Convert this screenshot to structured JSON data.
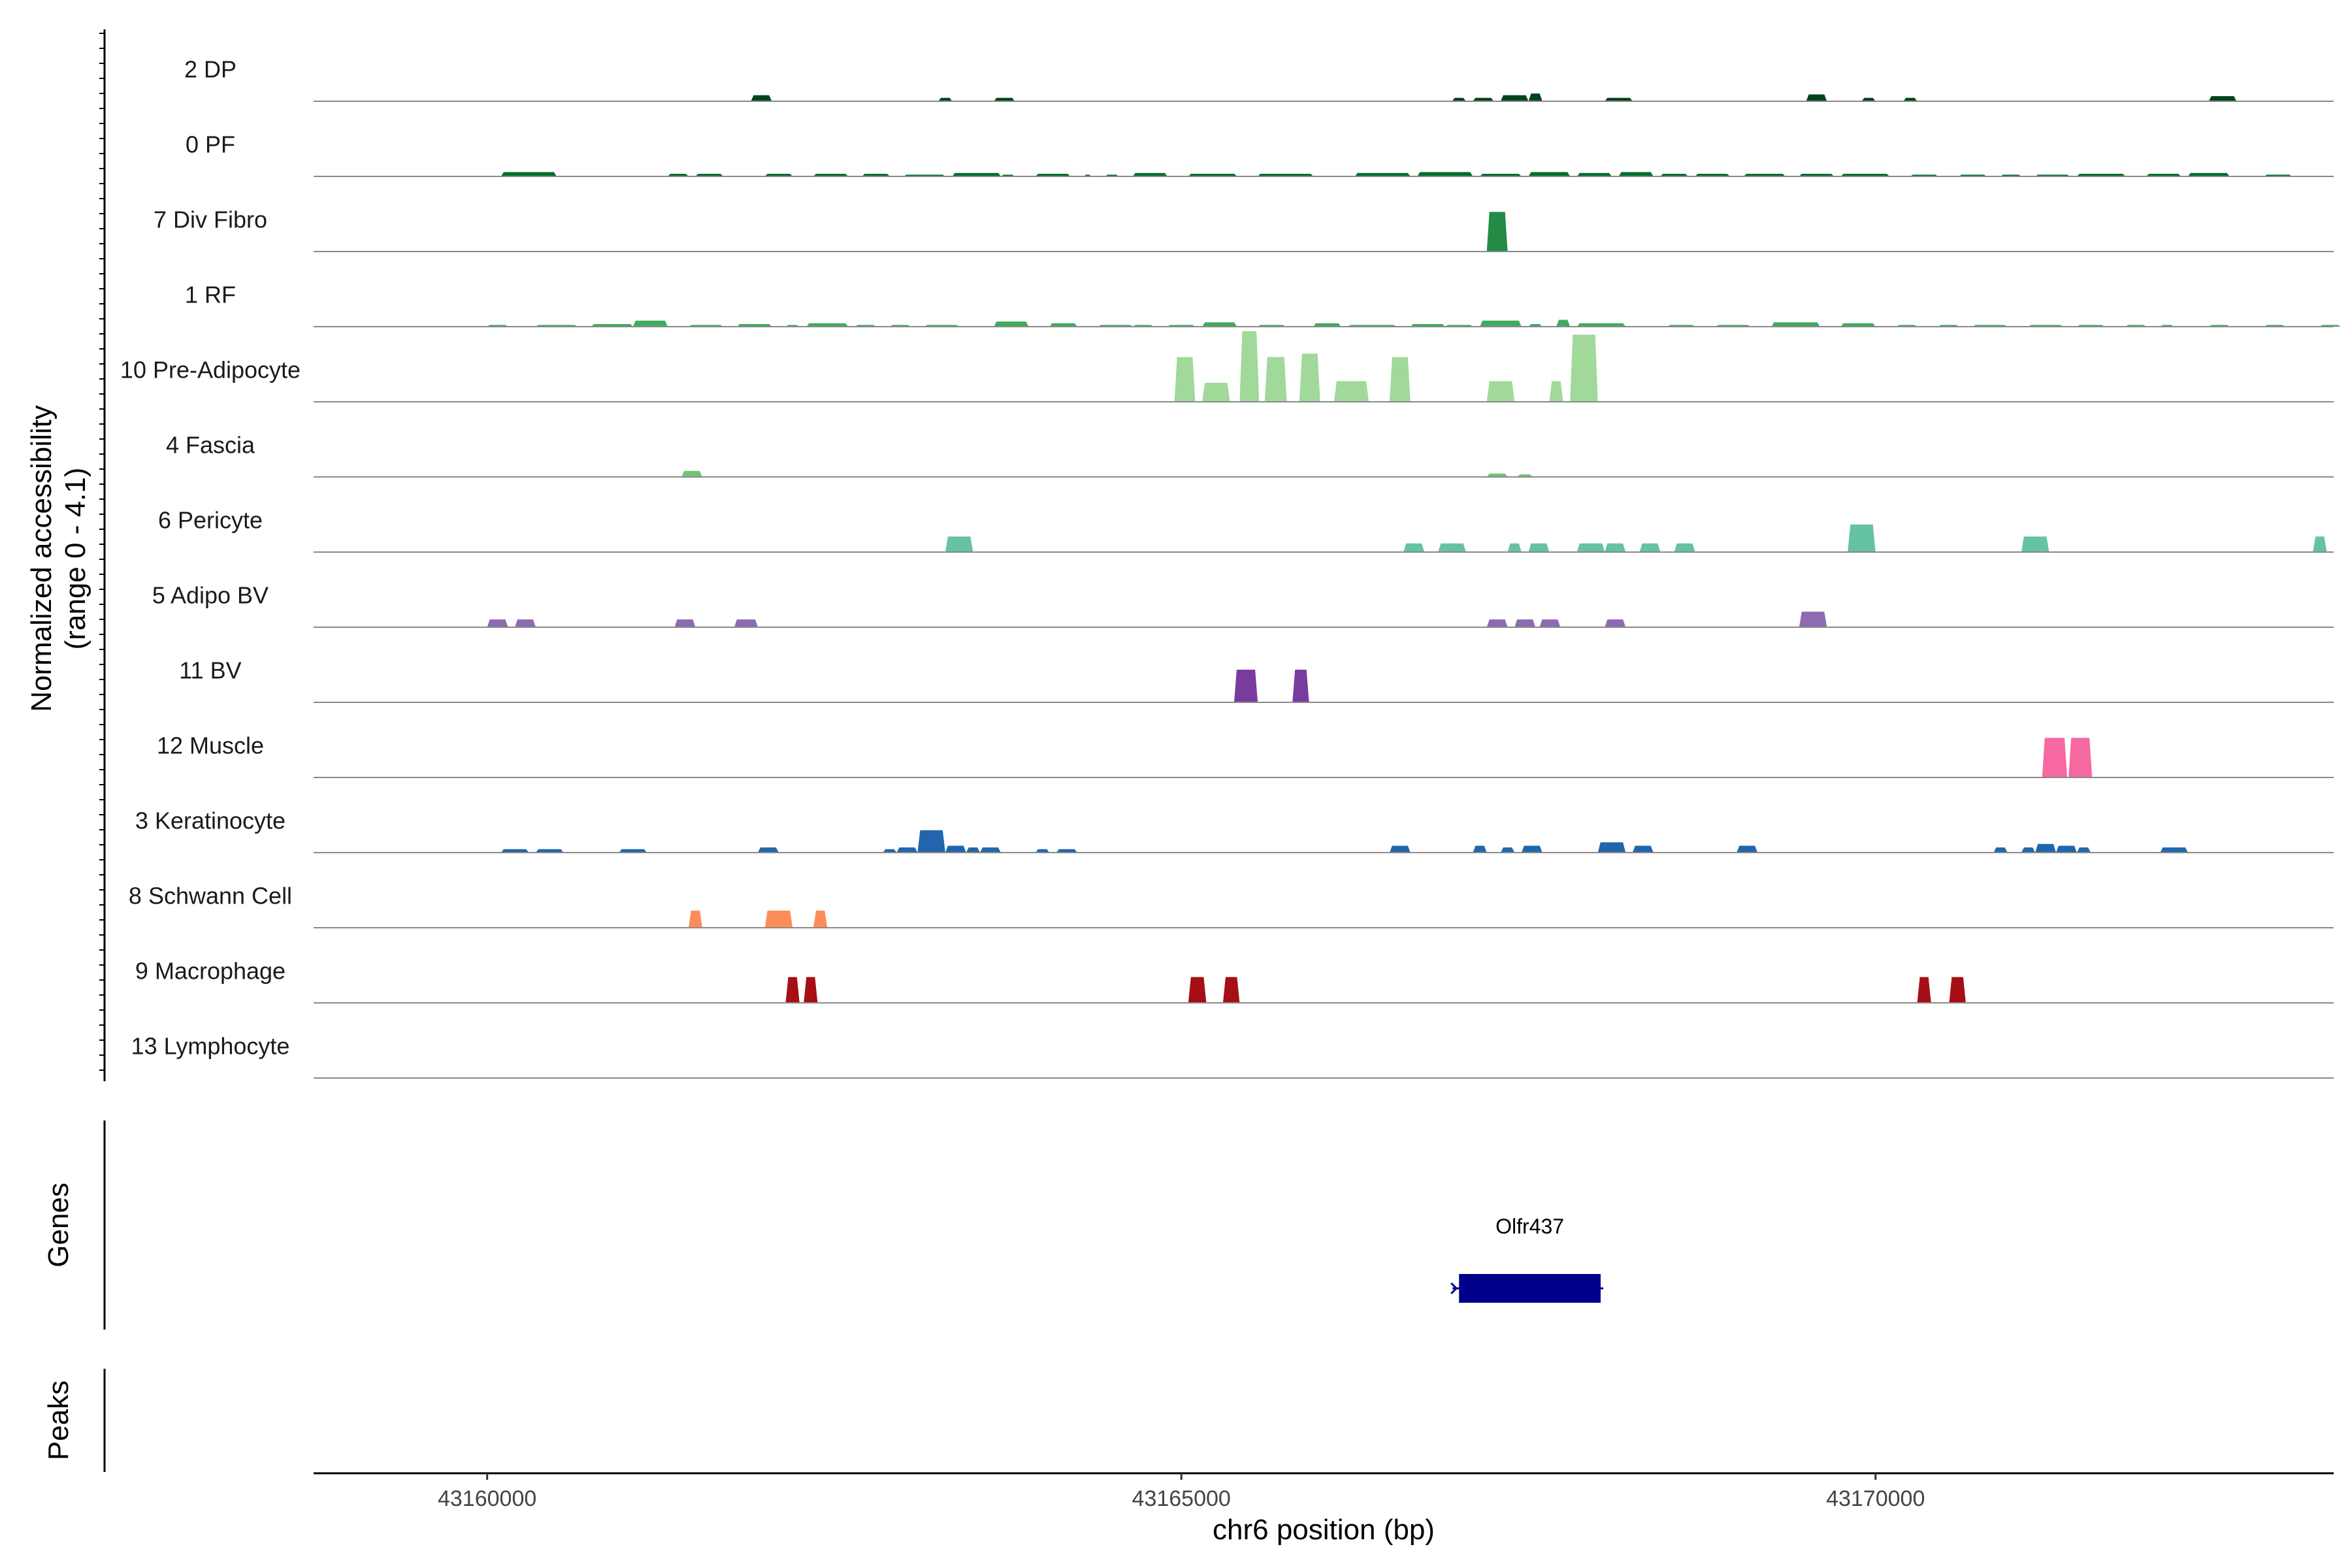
{
  "chart_data": {
    "type": "area",
    "title": "",
    "ylabel_line1": "Normalized accessibility",
    "ylabel_line2": "(range 0 - 4.1)",
    "ylim": [
      0,
      4.1
    ],
    "xlabel": "chr6 position (bp)",
    "xlim": [
      43158750,
      43173300
    ],
    "x_ticks": [
      43160000,
      43165000,
      43170000
    ],
    "x_tick_labels": [
      "43160000",
      "43165000",
      "43170000"
    ],
    "grid": false,
    "tracks": [
      {
        "name": "2 DP",
        "color": "#00441b",
        "peaks": [
          [
            43161900,
            43162050,
            0.35
          ],
          [
            43163250,
            43163350,
            0.2
          ],
          [
            43163650,
            43163800,
            0.2
          ],
          [
            43166950,
            43167050,
            0.2
          ],
          [
            43167100,
            43167250,
            0.2
          ],
          [
            43167300,
            43167500,
            0.35
          ],
          [
            43167500,
            43167600,
            0.45
          ],
          [
            43168050,
            43168250,
            0.2
          ],
          [
            43169500,
            43169650,
            0.4
          ],
          [
            43169900,
            43170000,
            0.2
          ],
          [
            43170200,
            43170300,
            0.2
          ],
          [
            43172400,
            43172600,
            0.3
          ]
        ]
      },
      {
        "name": "0 PF",
        "color": "#006d2c",
        "peaks": [
          [
            43160100,
            43160500,
            0.25
          ],
          [
            43161300,
            43161450,
            0.15
          ],
          [
            43161500,
            43161700,
            0.15
          ],
          [
            43162000,
            43162200,
            0.15
          ],
          [
            43162350,
            43162600,
            0.15
          ],
          [
            43162700,
            43162900,
            0.15
          ],
          [
            43163000,
            43163300,
            0.1
          ],
          [
            43163350,
            43163700,
            0.2
          ],
          [
            43163700,
            43163800,
            0.1
          ],
          [
            43163950,
            43164200,
            0.15
          ],
          [
            43164300,
            43164350,
            0.1
          ],
          [
            43164450,
            43164550,
            0.1
          ],
          [
            43164650,
            43164900,
            0.2
          ],
          [
            43165050,
            43165400,
            0.15
          ],
          [
            43165550,
            43165950,
            0.15
          ],
          [
            43166250,
            43166650,
            0.2
          ],
          [
            43166700,
            43167100,
            0.25
          ],
          [
            43167150,
            43167450,
            0.15
          ],
          [
            43167500,
            43167800,
            0.25
          ],
          [
            43167850,
            43168100,
            0.2
          ],
          [
            43168150,
            43168400,
            0.25
          ],
          [
            43168450,
            43168650,
            0.15
          ],
          [
            43168700,
            43168950,
            0.15
          ],
          [
            43169050,
            43169350,
            0.15
          ],
          [
            43169450,
            43169700,
            0.15
          ],
          [
            43169750,
            43170100,
            0.15
          ],
          [
            43170250,
            43170450,
            0.1
          ],
          [
            43170600,
            43170800,
            0.1
          ],
          [
            43170900,
            43171050,
            0.1
          ],
          [
            43171150,
            43171400,
            0.1
          ],
          [
            43171450,
            43171800,
            0.15
          ],
          [
            43171950,
            43172200,
            0.15
          ],
          [
            43172250,
            43172550,
            0.2
          ],
          [
            43172800,
            43173000,
            0.1
          ]
        ]
      },
      {
        "name": "7 Div Fibro",
        "color": "#238b45",
        "peaks": [
          [
            43167200,
            43167350,
            2.3
          ]
        ]
      },
      {
        "name": "1 RF",
        "color": "#41ab5d",
        "peaks": [
          [
            43160000,
            43160150,
            0.1
          ],
          [
            43160350,
            43160650,
            0.1
          ],
          [
            43160750,
            43161050,
            0.15
          ],
          [
            43161050,
            43161300,
            0.35
          ],
          [
            43161450,
            43161700,
            0.1
          ],
          [
            43161800,
            43162050,
            0.15
          ],
          [
            43162150,
            43162250,
            0.1
          ],
          [
            43162300,
            43162600,
            0.2
          ],
          [
            43162650,
            43162800,
            0.1
          ],
          [
            43162900,
            43163050,
            0.1
          ],
          [
            43163150,
            43163400,
            0.1
          ],
          [
            43163650,
            43163900,
            0.3
          ],
          [
            43164050,
            43164250,
            0.2
          ],
          [
            43164400,
            43164650,
            0.1
          ],
          [
            43164650,
            43164800,
            0.1
          ],
          [
            43164900,
            43165100,
            0.1
          ],
          [
            43165150,
            43165400,
            0.25
          ],
          [
            43165550,
            43165750,
            0.1
          ],
          [
            43165950,
            43166150,
            0.2
          ],
          [
            43166200,
            43166550,
            0.1
          ],
          [
            43166650,
            43166900,
            0.15
          ],
          [
            43166900,
            43167100,
            0.1
          ],
          [
            43167150,
            43167450,
            0.35
          ],
          [
            43167500,
            43167600,
            0.15
          ],
          [
            43167700,
            43167800,
            0.4
          ],
          [
            43167850,
            43168200,
            0.2
          ],
          [
            43168500,
            43168700,
            0.1
          ],
          [
            43168850,
            43169100,
            0.1
          ],
          [
            43169250,
            43169600,
            0.25
          ],
          [
            43169750,
            43170000,
            0.2
          ],
          [
            43170150,
            43170300,
            0.1
          ],
          [
            43170450,
            43170600,
            0.1
          ],
          [
            43170700,
            43170950,
            0.1
          ],
          [
            43171100,
            43171350,
            0.1
          ],
          [
            43171450,
            43171650,
            0.1
          ],
          [
            43171800,
            43171950,
            0.1
          ],
          [
            43172050,
            43172150,
            0.1
          ],
          [
            43172400,
            43172550,
            0.1
          ],
          [
            43172800,
            43172950,
            0.1
          ],
          [
            43173200,
            43173350,
            0.1
          ]
        ]
      },
      {
        "name": "10 Pre-Adipocyte",
        "color": "#a1d99b",
        "peaks": [
          [
            43164950,
            43165100,
            2.6
          ],
          [
            43165150,
            43165350,
            1.1
          ],
          [
            43165420,
            43165560,
            4.1
          ],
          [
            43165600,
            43165760,
            2.6
          ],
          [
            43165850,
            43166000,
            2.8
          ],
          [
            43166100,
            43166350,
            1.2
          ],
          [
            43166500,
            43166650,
            2.6
          ],
          [
            43167200,
            43167400,
            1.2
          ],
          [
            43167650,
            43167750,
            1.2
          ],
          [
            43167800,
            43168000,
            3.9
          ]
        ]
      },
      {
        "name": "4 Fascia",
        "color": "#74c476",
        "peaks": [
          [
            43161400,
            43161550,
            0.35
          ],
          [
            43167200,
            43167350,
            0.2
          ],
          [
            43167420,
            43167530,
            0.15
          ]
        ]
      },
      {
        "name": "6 Pericyte",
        "color": "#66c2a4",
        "peaks": [
          [
            43163300,
            43163500,
            0.9
          ],
          [
            43166600,
            43166750,
            0.5
          ],
          [
            43166850,
            43167050,
            0.5
          ],
          [
            43167350,
            43167450,
            0.5
          ],
          [
            43167500,
            43167650,
            0.5
          ],
          [
            43167850,
            43168050,
            0.5
          ],
          [
            43168050,
            43168200,
            0.5
          ],
          [
            43168300,
            43168450,
            0.5
          ],
          [
            43168550,
            43168700,
            0.5
          ],
          [
            43169800,
            43170000,
            1.6
          ],
          [
            43171050,
            43171250,
            0.9
          ],
          [
            43173150,
            43173250,
            0.9
          ]
        ]
      },
      {
        "name": "5 Adipo BV",
        "color": "#8c6bb1",
        "peaks": [
          [
            43160000,
            43160150,
            0.45
          ],
          [
            43160200,
            43160350,
            0.45
          ],
          [
            43161350,
            43161500,
            0.45
          ],
          [
            43161780,
            43161950,
            0.45
          ],
          [
            43167200,
            43167350,
            0.45
          ],
          [
            43167400,
            43167550,
            0.45
          ],
          [
            43167580,
            43167730,
            0.45
          ],
          [
            43168050,
            43168200,
            0.45
          ],
          [
            43169450,
            43169650,
            0.9
          ]
        ]
      },
      {
        "name": "11 BV",
        "color": "#7a3b9f",
        "peaks": [
          [
            43165380,
            43165550,
            1.9
          ],
          [
            43165800,
            43165920,
            1.9
          ]
        ]
      },
      {
        "name": "12 Muscle",
        "color": "#f768a1",
        "peaks": [
          [
            43171200,
            43171380,
            2.3
          ],
          [
            43171390,
            43171560,
            2.3
          ]
        ]
      },
      {
        "name": "3 Keratinocyte",
        "color": "#2166ac",
        "peaks": [
          [
            43160100,
            43160300,
            0.2
          ],
          [
            43160350,
            43160550,
            0.2
          ],
          [
            43160950,
            43161150,
            0.2
          ],
          [
            43161950,
            43162100,
            0.3
          ],
          [
            43162850,
            43162950,
            0.2
          ],
          [
            43162950,
            43163100,
            0.3
          ],
          [
            43163100,
            43163300,
            1.3
          ],
          [
            43163300,
            43163450,
            0.4
          ],
          [
            43163450,
            43163550,
            0.3
          ],
          [
            43163550,
            43163700,
            0.3
          ],
          [
            43163950,
            43164050,
            0.2
          ],
          [
            43164100,
            43164250,
            0.2
          ],
          [
            43166500,
            43166650,
            0.4
          ],
          [
            43167100,
            43167200,
            0.4
          ],
          [
            43167300,
            43167400,
            0.3
          ],
          [
            43167450,
            43167600,
            0.4
          ],
          [
            43168000,
            43168200,
            0.6
          ],
          [
            43168250,
            43168400,
            0.4
          ],
          [
            43169000,
            43169150,
            0.4
          ],
          [
            43170850,
            43170950,
            0.3
          ],
          [
            43171050,
            43171150,
            0.3
          ],
          [
            43171150,
            43171300,
            0.5
          ],
          [
            43171300,
            43171450,
            0.4
          ],
          [
            43171450,
            43171550,
            0.3
          ],
          [
            43172050,
            43172250,
            0.3
          ]
        ]
      },
      {
        "name": "8 Schwann Cell",
        "color": "#fc8d59",
        "peaks": [
          [
            43161450,
            43161550,
            1.0
          ],
          [
            43162000,
            43162200,
            1.0
          ],
          [
            43162350,
            43162450,
            1.0
          ]
        ]
      },
      {
        "name": "9 Macrophage",
        "color": "#a50f15",
        "peaks": [
          [
            43162150,
            43162250,
            1.5
          ],
          [
            43162280,
            43162380,
            1.5
          ],
          [
            43165050,
            43165180,
            1.5
          ],
          [
            43165300,
            43165420,
            1.5
          ],
          [
            43170300,
            43170400,
            1.5
          ],
          [
            43170530,
            43170650,
            1.5
          ]
        ]
      },
      {
        "name": "13 Lymphocyte",
        "color": "#6a51a3",
        "peaks": []
      }
    ],
    "genes_label": "Genes",
    "peaks_label": "Peaks",
    "genes": [
      {
        "name": "Olfr437",
        "start": 43167000,
        "end": 43168020,
        "strand": "-",
        "color": "#00008b"
      }
    ]
  }
}
